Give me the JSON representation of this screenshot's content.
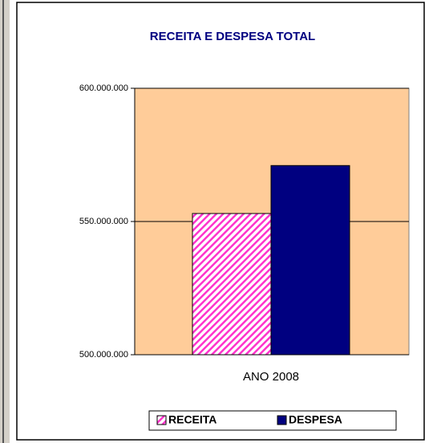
{
  "chart_data": {
    "type": "bar",
    "title": "RECEITA E DESPESA TOTAL",
    "categories": [
      "ANO 2008"
    ],
    "series": [
      {
        "name": "RECEITA",
        "color": "#ff33cc",
        "pattern": "diagonal",
        "values": [
          553000000
        ]
      },
      {
        "name": "DESPESA",
        "color": "#000080",
        "values": [
          571000000
        ]
      }
    ],
    "ylim": [
      500000000,
      600000000
    ],
    "yticks": [
      {
        "value": 500000000,
        "label": "500.000.000"
      },
      {
        "value": 550000000,
        "label": "550.000.000"
      },
      {
        "value": 600000000,
        "label": "600.000.000"
      }
    ],
    "grid": true,
    "legend": "bottom"
  }
}
